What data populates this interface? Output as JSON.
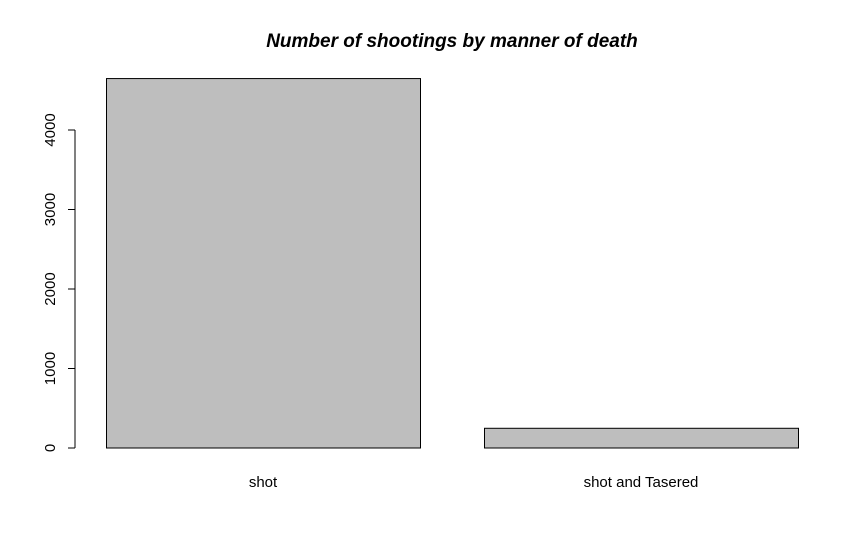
{
  "chart_data": {
    "type": "bar",
    "title": "Number of shootings by manner of death",
    "categories": [
      "shot",
      "shot and Tasered"
    ],
    "values": [
      4647,
      248
    ],
    "yticks": [
      "0",
      "1000",
      "2000",
      "3000",
      "4000"
    ],
    "ylim": [
      0,
      4647
    ],
    "xlabel": "",
    "ylabel": "",
    "bar_color": "#bebebe",
    "bar_border_color": "#000000",
    "grid": false,
    "legend": "none"
  }
}
